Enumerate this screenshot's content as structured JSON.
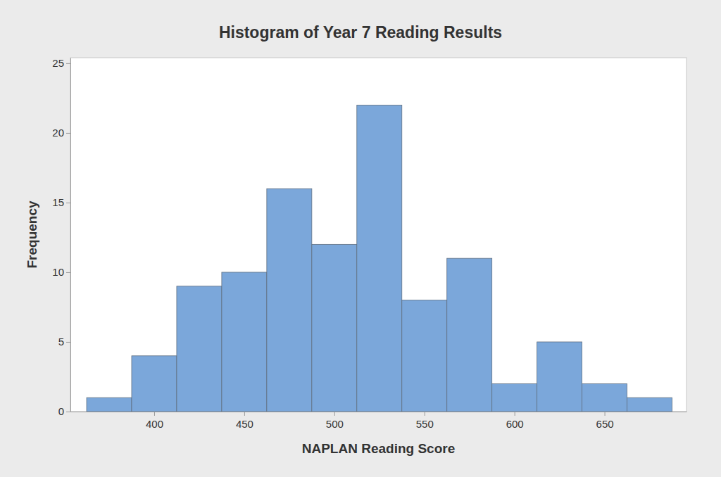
{
  "chart_data": {
    "type": "histogram",
    "title": "Histogram of Year 7 Reading Results",
    "x_label": "NAPLAN Reading Score",
    "y_label": "Frequency",
    "bins": [
      362.5,
      387.5,
      412.5,
      437.5,
      462.5,
      487.5,
      512.5,
      537.5,
      562.5,
      587.5,
      612.5,
      637.5,
      662.5,
      687.5
    ],
    "values": [
      1,
      4,
      9,
      10,
      16,
      12,
      22,
      8,
      11,
      2,
      5,
      2,
      1
    ],
    "color": "#7ba7da",
    "xlim": [
      353.5,
      695.5
    ],
    "xticks": [
      400,
      450,
      500,
      550,
      600,
      650
    ],
    "ylim": [
      0,
      25.4
    ],
    "yticks": [
      0,
      5,
      10,
      15,
      20,
      25
    ],
    "grid": false
  }
}
